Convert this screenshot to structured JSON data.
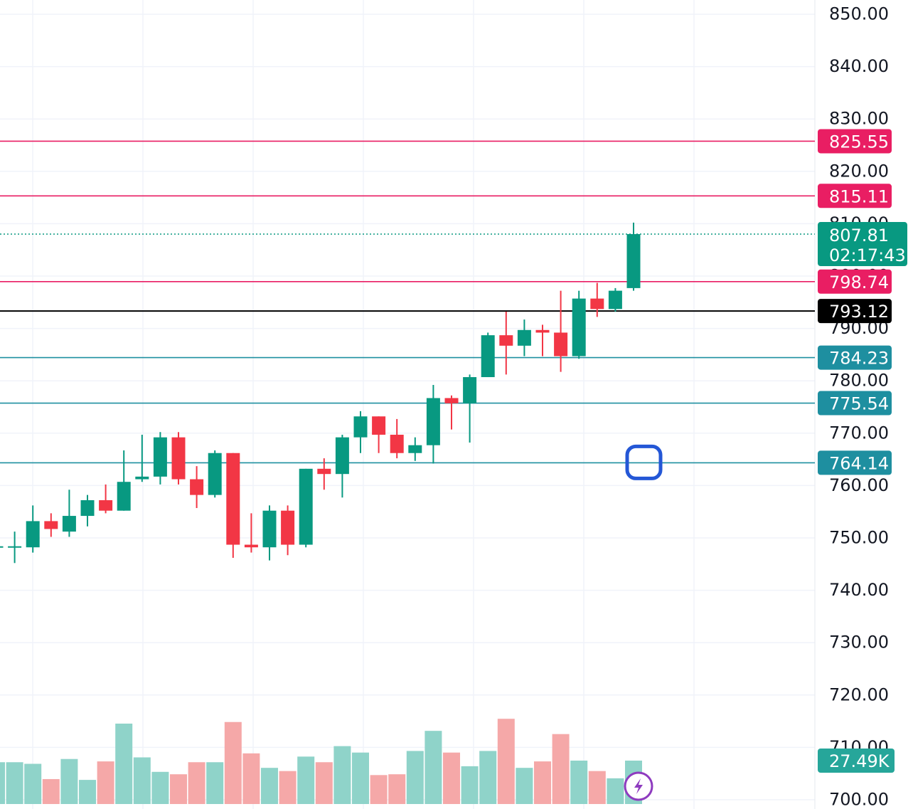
{
  "chart_data": {
    "type": "candlestick",
    "title": "",
    "y_axis": {
      "range": [
        700,
        850
      ],
      "ticks": [
        700,
        710,
        720,
        730,
        740,
        750,
        760,
        770,
        780,
        790,
        800,
        810,
        820,
        830,
        840,
        850
      ],
      "tick_labels": [
        "700.00",
        "710.00",
        "720.00",
        "730.00",
        "740.00",
        "750.00",
        "760.00",
        "770.00",
        "780.00",
        "790.00",
        "800.00",
        "810.00",
        "820.00",
        "830.00",
        "840.00",
        "850.00"
      ]
    },
    "candles": [
      {
        "o": 748.0,
        "h": 748.5,
        "l": 747.5,
        "c": 748.2
      },
      {
        "o": 748.0,
        "h": 751.0,
        "l": 745.0,
        "c": 748.2
      },
      {
        "o": 748.0,
        "h": 756.0,
        "l": 747.0,
        "c": 753.0
      },
      {
        "o": 753.0,
        "h": 754.5,
        "l": 750.0,
        "c": 751.5
      },
      {
        "o": 751.0,
        "h": 759.0,
        "l": 750.0,
        "c": 754.0
      },
      {
        "o": 754.0,
        "h": 758.0,
        "l": 752.0,
        "c": 757.0
      },
      {
        "o": 757.0,
        "h": 760.0,
        "l": 754.5,
        "c": 755.0
      },
      {
        "o": 755.0,
        "h": 766.5,
        "l": 755.0,
        "c": 760.5
      },
      {
        "o": 761.0,
        "h": 769.5,
        "l": 760.5,
        "c": 761.5
      },
      {
        "o": 761.5,
        "h": 770.0,
        "l": 760.0,
        "c": 769.0
      },
      {
        "o": 769.0,
        "h": 770.0,
        "l": 760.0,
        "c": 761.0
      },
      {
        "o": 761.0,
        "h": 763.5,
        "l": 755.5,
        "c": 758.0
      },
      {
        "o": 758.0,
        "h": 766.5,
        "l": 757.5,
        "c": 766.0
      },
      {
        "o": 766.0,
        "h": 766.0,
        "l": 746.0,
        "c": 748.5
      },
      {
        "o": 748.5,
        "h": 754.5,
        "l": 747.0,
        "c": 748.0
      },
      {
        "o": 748.0,
        "h": 756.0,
        "l": 745.5,
        "c": 755.0
      },
      {
        "o": 755.0,
        "h": 756.0,
        "l": 746.5,
        "c": 748.5
      },
      {
        "o": 748.5,
        "h": 763.0,
        "l": 748.0,
        "c": 763.0
      },
      {
        "o": 763.0,
        "h": 765.0,
        "l": 759.0,
        "c": 762.0
      },
      {
        "o": 762.0,
        "h": 769.5,
        "l": 757.5,
        "c": 769.0
      },
      {
        "o": 769.0,
        "h": 774.0,
        "l": 766.0,
        "c": 773.0
      },
      {
        "o": 773.0,
        "h": 773.0,
        "l": 766.0,
        "c": 769.5
      },
      {
        "o": 769.5,
        "h": 772.5,
        "l": 765.0,
        "c": 766.0
      },
      {
        "o": 766.0,
        "h": 769.0,
        "l": 764.5,
        "c": 767.5
      },
      {
        "o": 767.5,
        "h": 779.0,
        "l": 764.0,
        "c": 776.5
      },
      {
        "o": 776.5,
        "h": 777.0,
        "l": 770.5,
        "c": 775.5
      },
      {
        "o": 775.5,
        "h": 781.0,
        "l": 768.0,
        "c": 780.5
      },
      {
        "o": 780.5,
        "h": 789.0,
        "l": 780.5,
        "c": 788.5
      },
      {
        "o": 788.5,
        "h": 793.0,
        "l": 781.0,
        "c": 786.5
      },
      {
        "o": 786.5,
        "h": 791.5,
        "l": 784.5,
        "c": 789.5
      },
      {
        "o": 789.5,
        "h": 790.5,
        "l": 784.5,
        "c": 789.0
      },
      {
        "o": 789.0,
        "h": 797.0,
        "l": 781.5,
        "c": 784.5
      },
      {
        "o": 784.5,
        "h": 797.0,
        "l": 784.0,
        "c": 795.5
      },
      {
        "o": 795.5,
        "h": 798.5,
        "l": 792.0,
        "c": 793.5
      },
      {
        "o": 793.5,
        "h": 797.5,
        "l": 793.0,
        "c": 797.0
      },
      {
        "o": 797.5,
        "h": 810.0,
        "l": 797.0,
        "c": 807.81
      }
    ],
    "volume": [
      {
        "v": 0.52,
        "up": true
      },
      {
        "v": 0.52,
        "up": true
      },
      {
        "v": 0.5,
        "up": true
      },
      {
        "v": 0.31,
        "up": false
      },
      {
        "v": 0.56,
        "up": true
      },
      {
        "v": 0.3,
        "up": true
      },
      {
        "v": 0.53,
        "up": false
      },
      {
        "v": 1.0,
        "up": true
      },
      {
        "v": 0.58,
        "up": true
      },
      {
        "v": 0.4,
        "up": true
      },
      {
        "v": 0.37,
        "up": false
      },
      {
        "v": 0.52,
        "up": false
      },
      {
        "v": 0.52,
        "up": true
      },
      {
        "v": 1.02,
        "up": false
      },
      {
        "v": 0.63,
        "up": false
      },
      {
        "v": 0.45,
        "up": true
      },
      {
        "v": 0.41,
        "up": false
      },
      {
        "v": 0.59,
        "up": true
      },
      {
        "v": 0.52,
        "up": false
      },
      {
        "v": 0.72,
        "up": true
      },
      {
        "v": 0.64,
        "up": true
      },
      {
        "v": 0.36,
        "up": false
      },
      {
        "v": 0.37,
        "up": false
      },
      {
        "v": 0.66,
        "up": true
      },
      {
        "v": 0.91,
        "up": true
      },
      {
        "v": 0.64,
        "up": false
      },
      {
        "v": 0.47,
        "up": true
      },
      {
        "v": 0.66,
        "up": true
      },
      {
        "v": 1.06,
        "up": false
      },
      {
        "v": 0.45,
        "up": true
      },
      {
        "v": 0.53,
        "up": false
      },
      {
        "v": 0.87,
        "up": false
      },
      {
        "v": 0.54,
        "up": true
      },
      {
        "v": 0.41,
        "up": false
      },
      {
        "v": 0.32,
        "up": true
      },
      {
        "v": 0.54,
        "up": true
      }
    ],
    "levels": [
      {
        "price": 825.55,
        "label": "825.55",
        "color": "#e91e63"
      },
      {
        "price": 815.11,
        "label": "815.11",
        "color": "#e91e63"
      },
      {
        "price": 798.74,
        "label": "798.74",
        "color": "#e91e63"
      },
      {
        "price": 793.12,
        "label": "793.12",
        "color": "#000000"
      },
      {
        "price": 784.23,
        "label": "784.23",
        "color": "#1e8fa0"
      },
      {
        "price": 775.54,
        "label": "775.54",
        "color": "#1e8fa0"
      },
      {
        "price": 764.14,
        "label": "764.14",
        "color": "#1e8fa0"
      }
    ],
    "last_price": {
      "value": 807.81,
      "label": "807.81",
      "countdown": "02:17:43",
      "color": "#089981"
    },
    "volume_label": "27.49K",
    "colors": {
      "up": "#089981",
      "down": "#f23645",
      "volume_up": "#8fd3c9",
      "volume_down": "#f5a8a8",
      "grid": "#f0f3fa",
      "marker": "#2457d6",
      "lightning": "#8e3bbf"
    }
  }
}
